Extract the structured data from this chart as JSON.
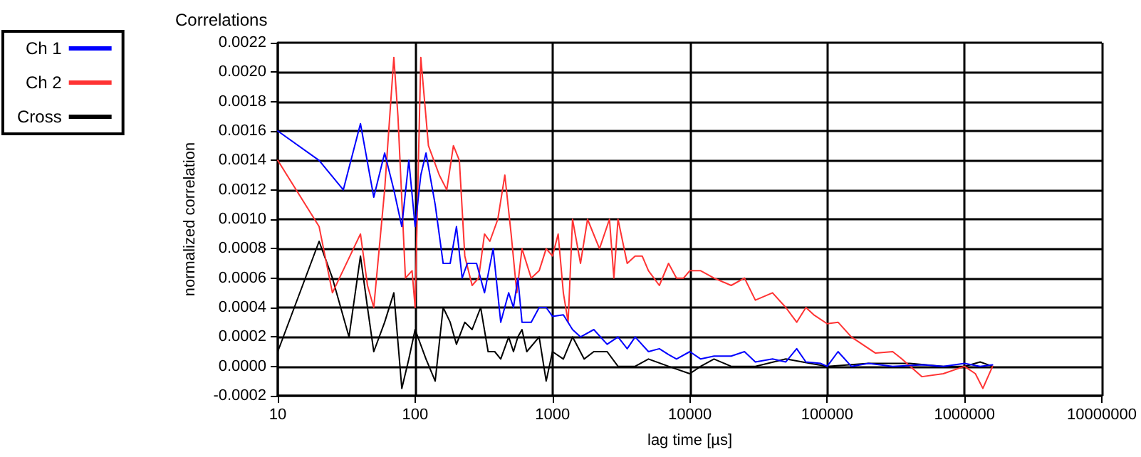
{
  "chart_data": {
    "type": "line",
    "title": "Correlations",
    "xlabel": "lag time [µs]",
    "ylabel": "normalized correlation",
    "log": "x",
    "grid": true,
    "legend": "top left",
    "marker": "none",
    "line_style": "solid",
    "xlim": [
      10,
      10000000
    ],
    "xticks": [
      10,
      100,
      1000,
      10000,
      100000,
      1000000,
      10000000
    ],
    "ylim": [
      -0.0002,
      0.0022
    ],
    "yticks": [
      {
        "value": -0.0002,
        "label": "-0.0002"
      },
      {
        "value": 0,
        "label": "0.0000"
      },
      {
        "value": 0.0002,
        "label": "0.0002"
      },
      {
        "value": 0.0004,
        "label": "0.0004"
      },
      {
        "value": 0.0006,
        "label": "0.0006"
      },
      {
        "value": 0.0008,
        "label": "0.0008"
      },
      {
        "value": 0.001,
        "label": "0.0010"
      },
      {
        "value": 0.0012,
        "label": "0.0012"
      },
      {
        "value": 0.0014,
        "label": "0.0014"
      },
      {
        "value": 0.0016,
        "label": "0.0016"
      },
      {
        "value": 0.0018,
        "label": "0.0018"
      },
      {
        "value": 0.002,
        "label": "0.0020"
      },
      {
        "value": 0.0022,
        "label": "0.0022"
      }
    ],
    "series": [
      {
        "name": "Ch 1",
        "color": "#0000ff",
        "x": [
          10,
          20,
          30,
          40,
          50,
          60,
          70,
          80,
          90,
          100,
          110,
          120,
          140,
          160,
          180,
          200,
          220,
          240,
          280,
          320,
          370,
          420,
          480,
          520,
          560,
          600,
          700,
          800,
          900,
          1000,
          1200,
          1400,
          1600,
          2000,
          2500,
          3000,
          3500,
          4000,
          5000,
          6000,
          7000,
          8000,
          10000,
          12000,
          15000,
          20000,
          25000,
          30000,
          40000,
          50000,
          60000,
          70000,
          90000,
          100000,
          120000,
          150000,
          200000,
          300000,
          500000,
          700000,
          1000000,
          1300000,
          1600000
        ],
        "values": [
          0.0016,
          0.0014,
          0.0012,
          0.00165,
          0.00115,
          0.00145,
          0.0012,
          0.00095,
          0.0014,
          0.00095,
          0.0013,
          0.00145,
          0.0011,
          0.0007,
          0.0007,
          0.00095,
          0.0006,
          0.0007,
          0.0007,
          0.0005,
          0.0008,
          0.0003,
          0.0005,
          0.0004,
          0.0006,
          0.0003,
          0.0003,
          0.0004,
          0.0004,
          0.00034,
          0.00035,
          0.00025,
          0.0002,
          0.00025,
          0.00015,
          0.0002,
          0.00012,
          0.0002,
          0.0001,
          0.00012,
          8e-05,
          5e-05,
          0.0001,
          5e-05,
          7e-05,
          7e-05,
          0.0001,
          3e-05,
          5e-05,
          3e-05,
          0.00012,
          3e-05,
          2e-05,
          0,
          0.0001,
          0,
          2e-05,
          0,
          1e-05,
          0,
          2e-05,
          0,
          1e-05
        ]
      },
      {
        "name": "Ch 2",
        "color": "#ff3333",
        "x": [
          10,
          20,
          25,
          40,
          45,
          50,
          60,
          70,
          75,
          85,
          95,
          100,
          110,
          125,
          150,
          170,
          190,
          210,
          230,
          260,
          290,
          320,
          350,
          400,
          450,
          500,
          550,
          600,
          700,
          800,
          900,
          1000,
          1100,
          1200,
          1300,
          1400,
          1600,
          1800,
          2200,
          2600,
          2800,
          3000,
          3500,
          4000,
          4500,
          5000,
          6000,
          7000,
          8000,
          9000,
          10000,
          12000,
          15000,
          20000,
          25000,
          30000,
          40000,
          50000,
          60000,
          70000,
          80000,
          100000,
          120000,
          150000,
          180000,
          225000,
          300000,
          350000,
          490000,
          700000,
          1000000,
          1200000,
          1360000,
          1600000
        ],
        "values": [
          0.0014,
          0.00095,
          0.0005,
          0.0009,
          0.00055,
          0.0004,
          0.0012,
          0.0021,
          0.0017,
          0.0006,
          0.00065,
          0.0004,
          0.0021,
          0.0015,
          0.0013,
          0.0012,
          0.0015,
          0.0014,
          0.00075,
          0.00055,
          0.0006,
          0.0009,
          0.00085,
          0.001,
          0.0013,
          0.0009,
          0.0005,
          0.0008,
          0.0006,
          0.00065,
          0.0008,
          0.00075,
          0.0009,
          0.0005,
          0.0003,
          0.001,
          0.0007,
          0.001,
          0.0008,
          0.001,
          0.0006,
          0.001,
          0.0007,
          0.00075,
          0.00075,
          0.00065,
          0.00055,
          0.0007,
          0.0006,
          0.0006,
          0.00065,
          0.00065,
          0.0006,
          0.00055,
          0.0006,
          0.00045,
          0.0005,
          0.0004,
          0.0003,
          0.0004,
          0.00035,
          0.00029,
          0.0003,
          0.0002,
          0.00015,
          9e-05,
          0.0001,
          5e-05,
          -7e-05,
          -5e-05,
          0,
          -5e-05,
          -0.00015,
          0
        ]
      },
      {
        "name": "Cross",
        "color": "#000000",
        "x": [
          10,
          20,
          25,
          33,
          40,
          45,
          50,
          60,
          70,
          80,
          90,
          100,
          120,
          140,
          160,
          180,
          200,
          230,
          260,
          300,
          340,
          380,
          420,
          480,
          520,
          560,
          600,
          650,
          800,
          900,
          1000,
          1200,
          1400,
          1700,
          2000,
          2500,
          3000,
          4000,
          5000,
          7000,
          10000,
          12000,
          15000,
          20000,
          30000,
          50000,
          100000,
          200000,
          400000,
          700000,
          1000000,
          1300000,
          1600000
        ],
        "values": [
          0.0001,
          0.00085,
          0.0006,
          0.0002,
          0.00075,
          0.0004,
          0.0001,
          0.0003,
          0.0005,
          -0.00015,
          5e-05,
          0.00025,
          5e-05,
          -0.0001,
          0.0004,
          0.0003,
          0.00015,
          0.0003,
          0.00025,
          0.0004,
          0.0001,
          0.0001,
          5e-05,
          0.0002,
          0.0001,
          0.0002,
          0.00025,
          0.0001,
          0.0002,
          -0.0001,
          0.0001,
          5e-05,
          0.0002,
          5e-05,
          0.0001,
          0.0001,
          0,
          0,
          5e-05,
          0,
          -5e-05,
          0,
          5e-05,
          0,
          0,
          5e-05,
          0,
          2e-05,
          2e-05,
          0,
          0,
          3e-05,
          0
        ]
      }
    ]
  }
}
